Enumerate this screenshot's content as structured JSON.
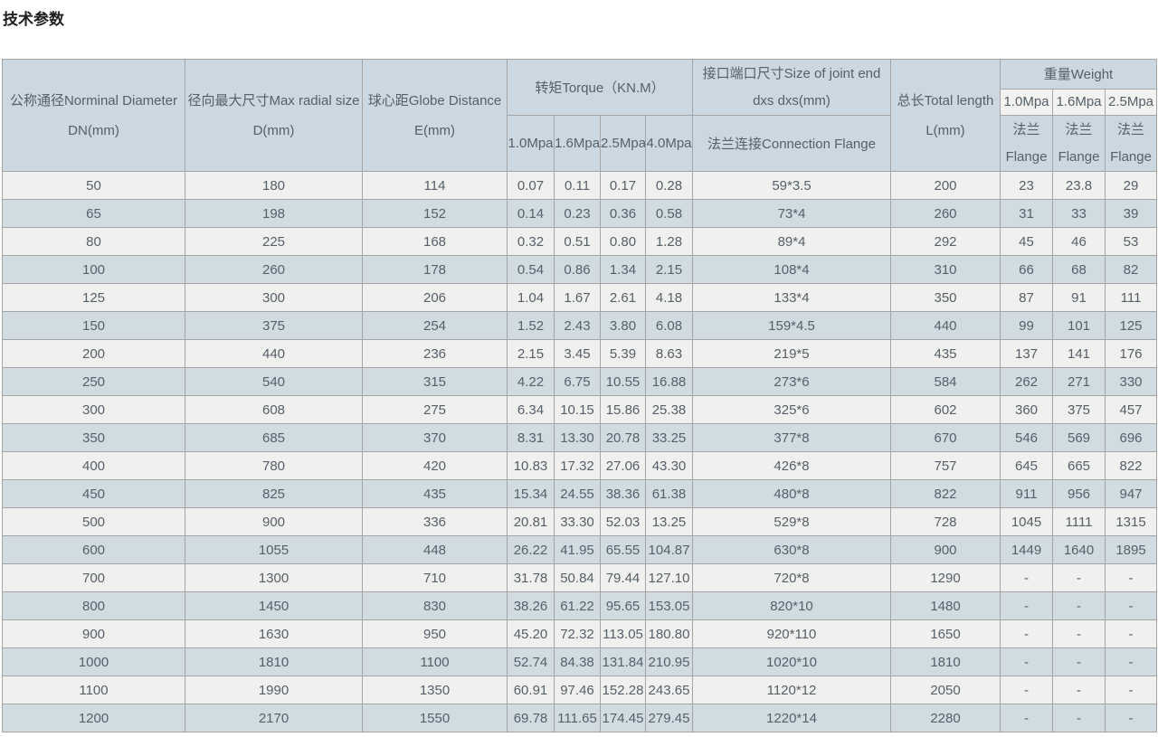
{
  "title": "技术参数",
  "colors": {
    "page_bg": "#ffffff",
    "header_bg": "#cbd8e1",
    "row_odd_bg": "#f0f0ee",
    "row_even_bg": "#d0dce2",
    "weight_mpa_cell_bg": "#f2f2f0",
    "border": "#a5a5a5",
    "text": "#566069",
    "title_text": "#1f1f1f"
  },
  "table": {
    "header": {
      "dn": [
        "公称通径Norminal Diameter",
        "DN(mm)"
      ],
      "d": [
        "径向最大尺寸Max radial size",
        "D(mm)"
      ],
      "e": [
        "球心距Globe Distance",
        "E(mm)"
      ],
      "torque_group": "转矩Torque（KN.M）",
      "torque_cols": [
        "1.0Mpa",
        "1.6Mpa",
        "2.5Mpa",
        "4.0Mpa"
      ],
      "joint_line1": "接口端口尺寸Size of joint end",
      "joint_line2": "dxs dxs(mm)",
      "joint_bottom": "法兰连接Connection Flange",
      "length": [
        "总长Total length",
        "L(mm)"
      ],
      "weight_group": "重量Weight",
      "weight_cols": [
        "1.0Mpa",
        "1.6Mpa",
        "2.5Mpa"
      ],
      "flange": [
        "法兰",
        "Flange"
      ]
    },
    "rows": [
      [
        "50",
        "180",
        "114",
        "0.07",
        "0.11",
        "0.17",
        "0.28",
        "59*3.5",
        "200",
        "23",
        "23.8",
        "29"
      ],
      [
        "65",
        "198",
        "152",
        "0.14",
        "0.23",
        "0.36",
        "0.58",
        "73*4",
        "260",
        "31",
        "33",
        "39"
      ],
      [
        "80",
        "225",
        "168",
        "0.32",
        "0.51",
        "0.80",
        "1.28",
        "89*4",
        "292",
        "45",
        "46",
        "53"
      ],
      [
        "100",
        "260",
        "178",
        "0.54",
        "0.86",
        "1.34",
        "2.15",
        "108*4",
        "310",
        "66",
        "68",
        "82"
      ],
      [
        "125",
        "300",
        "206",
        "1.04",
        "1.67",
        "2.61",
        "4.18",
        "133*4",
        "350",
        "87",
        "91",
        "111"
      ],
      [
        "150",
        "375",
        "254",
        "1.52",
        "2.43",
        "3.80",
        "6.08",
        "159*4.5",
        "440",
        "99",
        "101",
        "125"
      ],
      [
        "200",
        "440",
        "236",
        "2.15",
        "3.45",
        "5.39",
        "8.63",
        "219*5",
        "435",
        "137",
        "141",
        "176"
      ],
      [
        "250",
        "540",
        "315",
        "4.22",
        "6.75",
        "10.55",
        "16.88",
        "273*6",
        "584",
        "262",
        "271",
        "330"
      ],
      [
        "300",
        "608",
        "275",
        "6.34",
        "10.15",
        "15.86",
        "25.38",
        "325*6",
        "602",
        "360",
        "375",
        "457"
      ],
      [
        "350",
        "685",
        "370",
        "8.31",
        "13.30",
        "20.78",
        "33.25",
        "377*8",
        "670",
        "546",
        "569",
        "696"
      ],
      [
        "400",
        "780",
        "420",
        "10.83",
        "17.32",
        "27.06",
        "43.30",
        "426*8",
        "757",
        "645",
        "665",
        "822"
      ],
      [
        "450",
        "825",
        "435",
        "15.34",
        "24.55",
        "38.36",
        "61.38",
        "480*8",
        "822",
        "911",
        "956",
        "947"
      ],
      [
        "500",
        "900",
        "336",
        "20.81",
        "33.30",
        "52.03",
        "13.25",
        "529*8",
        "728",
        "1045",
        "1111",
        "1315"
      ],
      [
        "600",
        "1055",
        "448",
        "26.22",
        "41.95",
        "65.55",
        "104.87",
        "630*8",
        "900",
        "1449",
        "1640",
        "1895"
      ],
      [
        "700",
        "1300",
        "710",
        "31.78",
        "50.84",
        "79.44",
        "127.10",
        "720*8",
        "1290",
        "-",
        "-",
        "-"
      ],
      [
        "800",
        "1450",
        "830",
        "38.26",
        "61.22",
        "95.65",
        "153.05",
        "820*10",
        "1480",
        "-",
        "-",
        "-"
      ],
      [
        "900",
        "1630",
        "950",
        "45.20",
        "72.32",
        "113.05",
        "180.80",
        "920*110",
        "1650",
        "-",
        "-",
        "-"
      ],
      [
        "1000",
        "1810",
        "1100",
        "52.74",
        "84.38",
        "131.84",
        "210.95",
        "1020*10",
        "1810",
        "-",
        "-",
        "-"
      ],
      [
        "1100",
        "1990",
        "1350",
        "60.91",
        "97.46",
        "152.28",
        "243.65",
        "1120*12",
        "2050",
        "-",
        "-",
        "-"
      ],
      [
        "1200",
        "2170",
        "1550",
        "69.78",
        "111.65",
        "174.45",
        "279.45",
        "1220*14",
        "2280",
        "-",
        "-",
        "-"
      ]
    ]
  }
}
